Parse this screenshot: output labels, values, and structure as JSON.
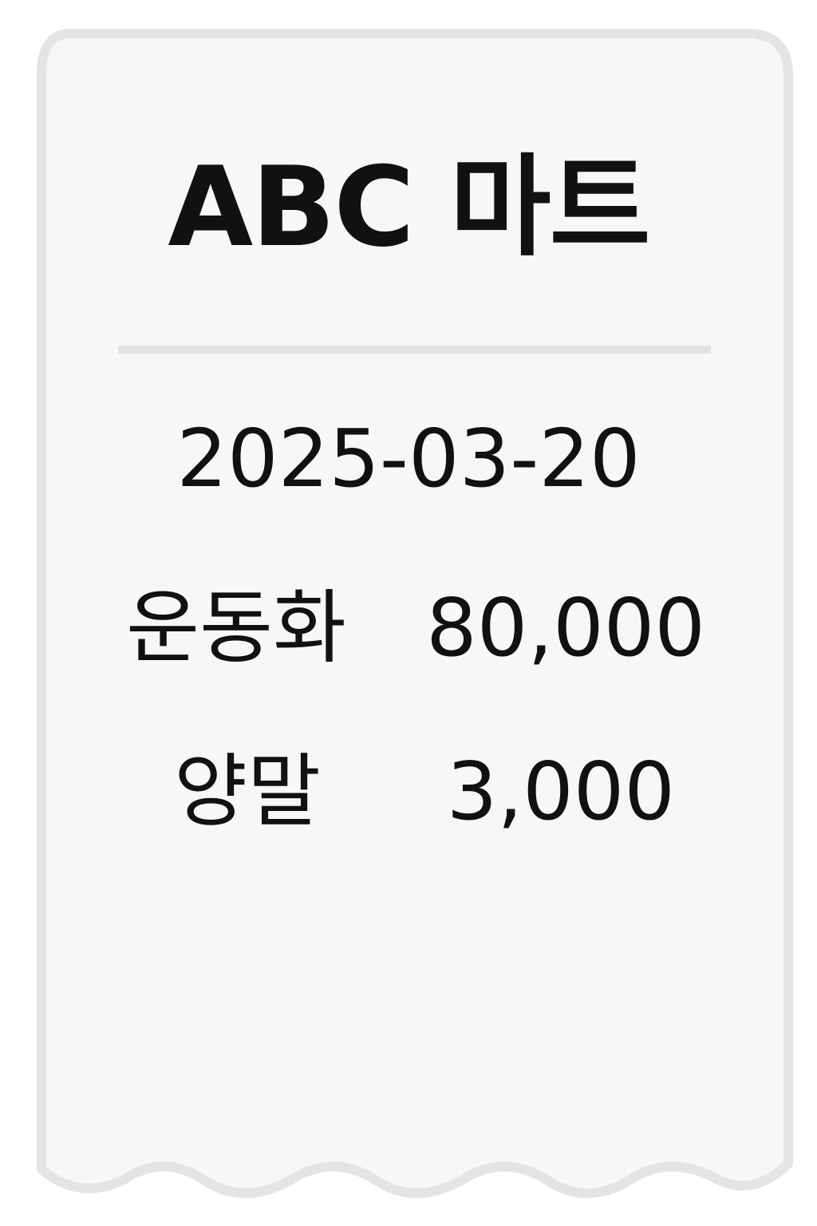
{
  "receipt": {
    "store_name": "ABC 마트",
    "date": "2025-03-20",
    "items": [
      {
        "name": "운동화",
        "price": "80,000"
      },
      {
        "name": "양말",
        "price": "3,000"
      }
    ]
  },
  "colors": {
    "paper": "#f7f7f8",
    "border": "#e4e4e6",
    "text": "#111111",
    "divider": "#e2e2e4"
  }
}
